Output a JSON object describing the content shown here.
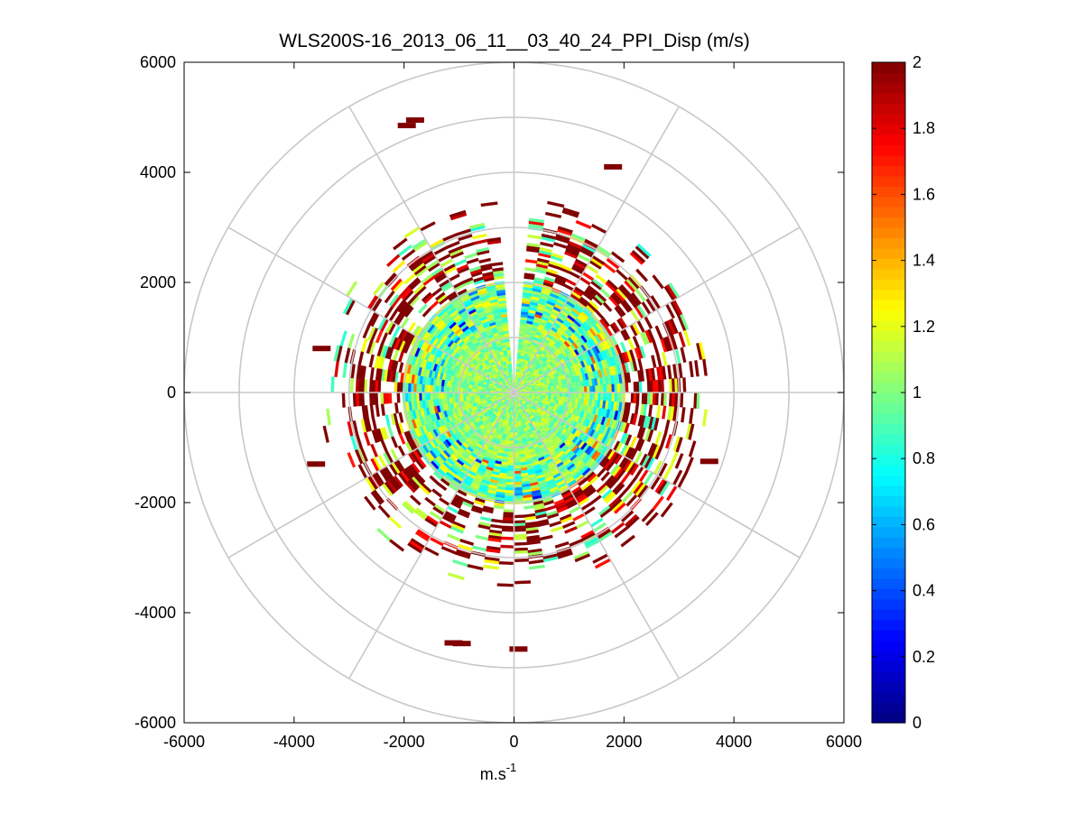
{
  "chart_data": {
    "type": "heatmap",
    "subtype": "polar-ppi",
    "title": "WLS200S-16_2013_06_11__03_40_24_PPI_Disp (m/s)",
    "xlabel": "m.s",
    "xlabel_superscript": "-1",
    "ylabel": "",
    "xlim": [
      -6000,
      6000
    ],
    "ylim": [
      -6000,
      6000
    ],
    "x_ticks": [
      "-6000",
      "-4000",
      "-2000",
      "0",
      "2000",
      "4000",
      "6000"
    ],
    "y_ticks": [
      "6000",
      "4000",
      "2000",
      "0",
      "-2000",
      "-4000",
      "-6000"
    ],
    "x_tick_values": [
      -6000,
      -4000,
      -2000,
      0,
      2000,
      4000,
      6000
    ],
    "y_tick_values": [
      6000,
      4000,
      2000,
      0,
      -2000,
      -4000,
      -6000
    ],
    "polar_grid": {
      "ring_radii": [
        1000,
        2000,
        3000,
        4000,
        5000,
        6000
      ],
      "spoke_angles_deg": [
        0,
        30,
        60,
        90,
        120,
        150,
        180,
        210,
        240,
        270,
        300,
        330
      ],
      "grid": true
    },
    "colormap": "jet",
    "colorbar": {
      "min": 0,
      "max": 2,
      "ticks": [
        "0",
        "0.2",
        "0.4",
        "0.6",
        "0.8",
        "1",
        "1.2",
        "1.4",
        "1.6",
        "1.8",
        "2"
      ],
      "tick_values": [
        0,
        0.2,
        0.4,
        0.6,
        0.8,
        1.0,
        1.2,
        1.4,
        1.6,
        1.8,
        2.0
      ],
      "placement": "right"
    },
    "field": {
      "dense_core": {
        "radius_max": 2000,
        "typical_value": 1.0
      },
      "outer_scatter": {
        "radius_min": 2000,
        "radius_max": 3500,
        "typical_value": 1.9
      },
      "blind_sector_deg": [
        87,
        93
      ],
      "outliers": [
        {
          "x": -1950,
          "y": 4850,
          "value": 2.0
        },
        {
          "x": -1800,
          "y": 4950,
          "value": 2.0
        },
        {
          "x": -1100,
          "y": -4550,
          "value": 2.0
        },
        {
          "x": -950,
          "y": -4560,
          "value": 2.0
        },
        {
          "x": 80,
          "y": -4660,
          "value": 2.0
        },
        {
          "x": -3500,
          "y": 800,
          "value": 2.0
        },
        {
          "x": -3600,
          "y": -1300,
          "value": 2.0
        },
        {
          "x": 3550,
          "y": -1250,
          "value": 2.0
        },
        {
          "x": 1800,
          "y": 4100,
          "value": 2.0
        }
      ]
    }
  }
}
